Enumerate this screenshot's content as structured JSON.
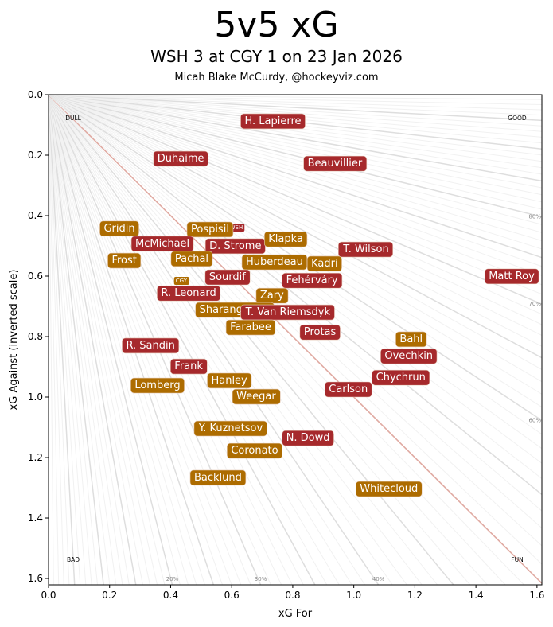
{
  "chart_data": {
    "type": "scatter",
    "title": "5v5 xG",
    "subtitle": "WSH 3 at CGY 1 on 23 Jan 2026",
    "credit": "Micah Blake McCurdy, @hockeyviz.com",
    "xlabel": "xG For",
    "ylabel": "xG Against (inverted scale)",
    "xlim": [
      0,
      1.616
    ],
    "ylim": [
      1.621,
      0
    ],
    "y_inverted": true,
    "xticks": [
      "0.0",
      "0.2",
      "0.4",
      "0.6",
      "0.8",
      "1.0",
      "1.2",
      "1.4",
      "1.6"
    ],
    "yticks": [
      "0.0",
      "0.2",
      "0.4",
      "0.6",
      "0.8",
      "1.0",
      "1.2",
      "1.4",
      "1.6"
    ],
    "corner_labels": {
      "top_left": "DULL",
      "top_right": "GOOD",
      "bottom_left": "BAD",
      "bottom_right": "FUN"
    },
    "share_lines": {
      "step_percent": 1,
      "labeled": [
        "20%",
        "30%",
        "40%",
        "60%",
        "70%",
        "80%"
      ]
    },
    "team_colors": {
      "WSH": "#A6292C",
      "CGY": "#AD6C00"
    },
    "teams": [
      {
        "team": "WSH",
        "x": 0.615,
        "y": 0.437
      },
      {
        "team": "CGY",
        "x": 0.435,
        "y": 0.613
      }
    ],
    "players": [
      {
        "name": "H. Lapierre",
        "team": "WSH",
        "x": 0.735,
        "y": 0.084
      },
      {
        "name": "Duhaime",
        "team": "WSH",
        "x": 0.433,
        "y": 0.208
      },
      {
        "name": "Beauvillier",
        "team": "WSH",
        "x": 0.938,
        "y": 0.224
      },
      {
        "name": "Gridin",
        "team": "CGY",
        "x": 0.232,
        "y": 0.439
      },
      {
        "name": "Pospisil",
        "team": "CGY",
        "x": 0.529,
        "y": 0.442
      },
      {
        "name": "McMichael",
        "team": "WSH",
        "x": 0.373,
        "y": 0.489
      },
      {
        "name": "D. Strome",
        "team": "WSH",
        "x": 0.612,
        "y": 0.497
      },
      {
        "name": "Klapka",
        "team": "CGY",
        "x": 0.777,
        "y": 0.474
      },
      {
        "name": "T. Wilson",
        "team": "WSH",
        "x": 1.04,
        "y": 0.508
      },
      {
        "name": "Frost",
        "team": "CGY",
        "x": 0.248,
        "y": 0.545
      },
      {
        "name": "Pachal",
        "team": "CGY",
        "x": 0.469,
        "y": 0.539
      },
      {
        "name": "Huberdeau",
        "team": "CGY",
        "x": 0.74,
        "y": 0.55
      },
      {
        "name": "Kadri",
        "team": "CGY",
        "x": 0.904,
        "y": 0.555
      },
      {
        "name": "Matt Roy",
        "team": "WSH",
        "x": 1.517,
        "y": 0.597
      },
      {
        "name": "Sourdif",
        "team": "WSH",
        "x": 0.586,
        "y": 0.6
      },
      {
        "name": "Fehérváry",
        "team": "WSH",
        "x": 0.863,
        "y": 0.611
      },
      {
        "name": "R. Leonard",
        "team": "WSH",
        "x": 0.459,
        "y": 0.653
      },
      {
        "name": "Zary",
        "team": "CGY",
        "x": 0.732,
        "y": 0.661
      },
      {
        "name": "Sharangovich",
        "team": "CGY",
        "x": 0.61,
        "y": 0.708
      },
      {
        "name": "T. Van Riemsdyk",
        "team": "WSH",
        "x": 0.784,
        "y": 0.716
      },
      {
        "name": "Farabee",
        "team": "CGY",
        "x": 0.662,
        "y": 0.766
      },
      {
        "name": "Protas",
        "team": "WSH",
        "x": 0.889,
        "y": 0.782
      },
      {
        "name": "Bahl",
        "team": "CGY",
        "x": 1.188,
        "y": 0.805
      },
      {
        "name": "R. Sandin",
        "team": "WSH",
        "x": 0.334,
        "y": 0.826
      },
      {
        "name": "Ovechkin",
        "team": "WSH",
        "x": 1.18,
        "y": 0.861
      },
      {
        "name": "Frank",
        "team": "WSH",
        "x": 0.459,
        "y": 0.895
      },
      {
        "name": "Chychrun",
        "team": "WSH",
        "x": 1.154,
        "y": 0.932
      },
      {
        "name": "Hanley",
        "team": "CGY",
        "x": 0.592,
        "y": 0.942
      },
      {
        "name": "Lomberg",
        "team": "CGY",
        "x": 0.357,
        "y": 0.958
      },
      {
        "name": "Carlson",
        "team": "WSH",
        "x": 0.982,
        "y": 0.971
      },
      {
        "name": "Weegar",
        "team": "CGY",
        "x": 0.68,
        "y": 0.995
      },
      {
        "name": "Y. Kuznetsov",
        "team": "CGY",
        "x": 0.597,
        "y": 1.1
      },
      {
        "name": "N. Dowd",
        "team": "WSH",
        "x": 0.85,
        "y": 1.132
      },
      {
        "name": "Coronato",
        "team": "CGY",
        "x": 0.675,
        "y": 1.174
      },
      {
        "name": "Backlund",
        "team": "CGY",
        "x": 0.555,
        "y": 1.263
      },
      {
        "name": "Whitecloud",
        "team": "CGY",
        "x": 1.115,
        "y": 1.3
      }
    ]
  }
}
